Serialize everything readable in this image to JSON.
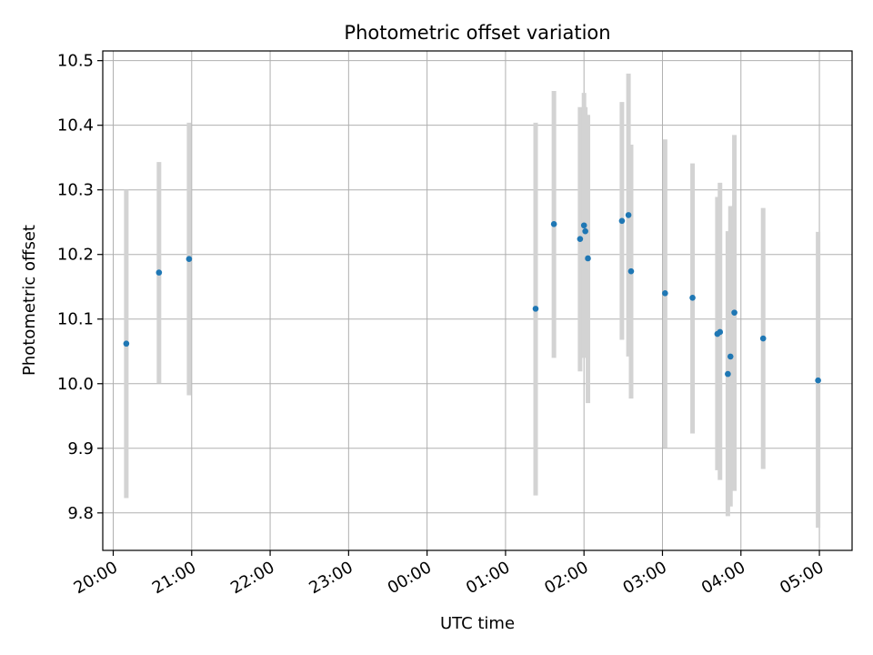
{
  "chart_data": {
    "type": "scatter",
    "title": "Photometric offset variation",
    "xlabel": "UTC time",
    "ylabel": "Photometric offset",
    "xlim": [
      "19:52",
      "05:25"
    ],
    "ylim": [
      9.742,
      10.515
    ],
    "x_ticks": [
      "20:00",
      "21:00",
      "22:00",
      "23:00",
      "00:00",
      "01:00",
      "02:00",
      "03:00",
      "04:00",
      "05:00"
    ],
    "y_ticks": [
      "9.8",
      "9.9",
      "10.0",
      "10.1",
      "10.2",
      "10.3",
      "10.4",
      "10.5"
    ],
    "grid": true,
    "error_bars": true,
    "colors": {
      "points": "#1f77b4",
      "error_bars": "#d3d3d3",
      "grid": "#b0b0b0"
    },
    "points": [
      {
        "x": "20:10",
        "y": 10.062,
        "yerr_low": 9.823,
        "yerr_high": 10.3
      },
      {
        "x": "20:35",
        "y": 10.172,
        "yerr_low": 10.001,
        "yerr_high": 10.343
      },
      {
        "x": "20:58",
        "y": 10.193,
        "yerr_low": 9.982,
        "yerr_high": 10.404
      },
      {
        "x": "01:23",
        "y": 10.116,
        "yerr_low": 9.827,
        "yerr_high": 10.404
      },
      {
        "x": "01:37",
        "y": 10.247,
        "yerr_low": 10.04,
        "yerr_high": 10.453
      },
      {
        "x": "01:57",
        "y": 10.224,
        "yerr_low": 10.019,
        "yerr_high": 10.428
      },
      {
        "x": "02:00",
        "y": 10.245,
        "yerr_low": 10.04,
        "yerr_high": 10.45
      },
      {
        "x": "02:01",
        "y": 10.236,
        "yerr_low": 10.056,
        "yerr_high": 10.428
      },
      {
        "x": "02:03",
        "y": 10.194,
        "yerr_low": 9.97,
        "yerr_high": 10.416
      },
      {
        "x": "02:29",
        "y": 10.252,
        "yerr_low": 10.068,
        "yerr_high": 10.436
      },
      {
        "x": "02:34",
        "y": 10.261,
        "yerr_low": 10.042,
        "yerr_high": 10.48
      },
      {
        "x": "02:36",
        "y": 10.174,
        "yerr_low": 9.977,
        "yerr_high": 10.37
      },
      {
        "x": "03:02",
        "y": 10.14,
        "yerr_low": 9.901,
        "yerr_high": 10.378
      },
      {
        "x": "03:23",
        "y": 10.133,
        "yerr_low": 9.923,
        "yerr_high": 10.341
      },
      {
        "x": "03:42",
        "y": 10.077,
        "yerr_low": 9.866,
        "yerr_high": 10.289
      },
      {
        "x": "03:44",
        "y": 10.08,
        "yerr_low": 9.851,
        "yerr_high": 10.311
      },
      {
        "x": "03:50",
        "y": 10.015,
        "yerr_low": 9.795,
        "yerr_high": 10.236
      },
      {
        "x": "03:52",
        "y": 10.042,
        "yerr_low": 9.81,
        "yerr_high": 10.275
      },
      {
        "x": "03:55",
        "y": 10.11,
        "yerr_low": 9.834,
        "yerr_high": 10.385
      },
      {
        "x": "04:17",
        "y": 10.07,
        "yerr_low": 9.868,
        "yerr_high": 10.272
      },
      {
        "x": "04:59",
        "y": 10.005,
        "yerr_low": 9.777,
        "yerr_high": 10.235
      }
    ]
  }
}
